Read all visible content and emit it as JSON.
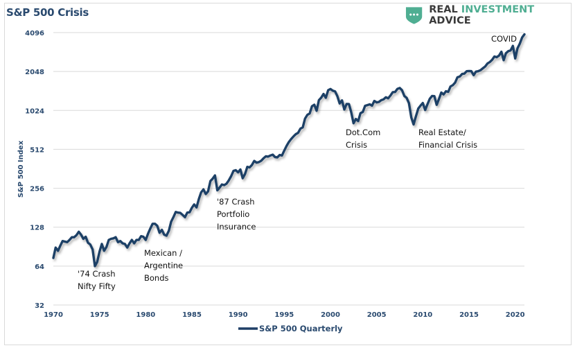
{
  "header": {
    "logo_word1": "REAL ",
    "logo_word2": "INVESTMENT",
    "logo_word3": " ADVICE",
    "logo_icon": "shield-dots-icon"
  },
  "colors": {
    "line": "#1f3f66",
    "title": "#2a4a6f",
    "logo_green": "#4fae92",
    "grid": "#d9d9d9"
  },
  "chart_data": {
    "type": "line",
    "title": "S&P 500 Crisis",
    "xlabel": "",
    "ylabel": "S&P 500 Index",
    "y_scale": "log2",
    "ylim": [
      32,
      4096
    ],
    "xlim": [
      1970,
      2021
    ],
    "grid": true,
    "legend_position": "bottom",
    "x_ticks": [
      "1970",
      "1975",
      "1980",
      "1985",
      "1990",
      "1995",
      "2000",
      "2005",
      "2010",
      "2015",
      "2020"
    ],
    "y_ticks": [
      "32",
      "64",
      "128",
      "256",
      "512",
      "1024",
      "2048",
      "4096"
    ],
    "series": [
      {
        "name": "S&P 500 Quarterly",
        "x": [
          1970.0,
          1970.25,
          1970.5,
          1970.75,
          1971.0,
          1971.25,
          1971.5,
          1971.75,
          1972.0,
          1972.25,
          1972.5,
          1972.75,
          1973.0,
          1973.25,
          1973.5,
          1973.75,
          1974.0,
          1974.25,
          1974.5,
          1974.75,
          1975.0,
          1975.25,
          1975.5,
          1975.75,
          1976.0,
          1976.25,
          1976.5,
          1976.75,
          1977.0,
          1977.25,
          1977.5,
          1977.75,
          1978.0,
          1978.25,
          1978.5,
          1978.75,
          1979.0,
          1979.25,
          1979.5,
          1979.75,
          1980.0,
          1980.25,
          1980.5,
          1980.75,
          1981.0,
          1981.25,
          1981.5,
          1981.75,
          1982.0,
          1982.25,
          1982.5,
          1982.75,
          1983.0,
          1983.25,
          1983.5,
          1983.75,
          1984.0,
          1984.25,
          1984.5,
          1984.75,
          1985.0,
          1985.25,
          1985.5,
          1985.75,
          1986.0,
          1986.25,
          1986.5,
          1986.75,
          1987.0,
          1987.25,
          1987.5,
          1987.75,
          1988.0,
          1988.25,
          1988.5,
          1988.75,
          1989.0,
          1989.25,
          1989.5,
          1989.75,
          1990.0,
          1990.25,
          1990.5,
          1990.75,
          1991.0,
          1991.25,
          1991.5,
          1991.75,
          1992.0,
          1992.25,
          1992.5,
          1992.75,
          1993.0,
          1993.25,
          1993.5,
          1993.75,
          1994.0,
          1994.25,
          1994.5,
          1994.75,
          1995.0,
          1995.25,
          1995.5,
          1995.75,
          1996.0,
          1996.25,
          1996.5,
          1996.75,
          1997.0,
          1997.25,
          1997.5,
          1997.75,
          1998.0,
          1998.25,
          1998.5,
          1998.75,
          1999.0,
          1999.25,
          1999.5,
          1999.75,
          2000.0,
          2000.25,
          2000.5,
          2000.75,
          2001.0,
          2001.25,
          2001.5,
          2001.75,
          2002.0,
          2002.25,
          2002.5,
          2002.75,
          2003.0,
          2003.25,
          2003.5,
          2003.75,
          2004.0,
          2004.25,
          2004.5,
          2004.75,
          2005.0,
          2005.25,
          2005.5,
          2005.75,
          2006.0,
          2006.25,
          2006.5,
          2006.75,
          2007.0,
          2007.25,
          2007.5,
          2007.75,
          2008.0,
          2008.25,
          2008.5,
          2008.75,
          2009.0,
          2009.25,
          2009.5,
          2009.75,
          2010.0,
          2010.25,
          2010.5,
          2010.75,
          2011.0,
          2011.25,
          2011.5,
          2011.75,
          2012.0,
          2012.25,
          2012.5,
          2012.75,
          2013.0,
          2013.25,
          2013.5,
          2013.75,
          2014.0,
          2014.25,
          2014.5,
          2014.75,
          2015.0,
          2015.25,
          2015.5,
          2015.75,
          2016.0,
          2016.25,
          2016.5,
          2016.75,
          2017.0,
          2017.25,
          2017.5,
          2017.75,
          2018.0,
          2018.25,
          2018.5,
          2018.75,
          2019.0,
          2019.25,
          2019.5,
          2019.75,
          2020.0,
          2020.25,
          2020.5,
          2020.75,
          2021.0
        ],
        "values": [
          74,
          89,
          84,
          92,
          100,
          99,
          98,
          102,
          107,
          107,
          111,
          118,
          112,
          104,
          108,
          97,
          94,
          86,
          64,
          69,
          83,
          95,
          84,
          90,
          102,
          104,
          105,
          107,
          98,
          100,
          96,
          95,
          89,
          96,
          102,
          96,
          102,
          102,
          109,
          108,
          102,
          114,
          125,
          136,
          136,
          131,
          116,
          122,
          112,
          110,
          120,
          141,
          153,
          168,
          166,
          165,
          159,
          153,
          166,
          167,
          181,
          192,
          182,
          211,
          238,
          251,
          231,
          242,
          291,
          304,
          322,
          247,
          259,
          274,
          271,
          278,
          295,
          318,
          349,
          353,
          340,
          358,
          306,
          330,
          375,
          371,
          388,
          417,
          404,
          408,
          418,
          436,
          452,
          450,
          459,
          466,
          446,
          444,
          463,
          459,
          501,
          545,
          584,
          616,
          645,
          671,
          687,
          741,
          757,
          885,
          947,
          970,
          1102,
          1134,
          1017,
          1229,
          1286,
          1373,
          1283,
          1469,
          1499,
          1455,
          1436,
          1320,
          1160,
          1224,
          1041,
          1148,
          1147,
          990,
          815,
          880,
          848,
          975,
          996,
          1112,
          1126,
          1141,
          1115,
          1212,
          1181,
          1191,
          1229,
          1248,
          1295,
          1270,
          1336,
          1418,
          1421,
          1503,
          1527,
          1469,
          1323,
          1280,
          1166,
          903,
          798,
          919,
          1057,
          1115,
          1169,
          1031,
          1141,
          1258,
          1326,
          1321,
          1131,
          1258,
          1408,
          1362,
          1441,
          1426,
          1569,
          1606,
          1682,
          1848,
          1872,
          1960,
          1972,
          2059,
          2068,
          2063,
          1920,
          2044,
          2060,
          2099,
          2168,
          2239,
          2363,
          2423,
          2519,
          2674,
          2641,
          2718,
          2914,
          2507,
          2834,
          2942,
          2977,
          3231,
          2585,
          3100,
          3363,
          3756,
          3973
        ]
      }
    ],
    "annotations": [
      {
        "text_lines": [
          "'74 Crash",
          "Nifty Fifty"
        ],
        "near_x": 1974.5
      },
      {
        "text_lines": [
          "Mexican /",
          "Argentine",
          "Bonds"
        ],
        "near_x": 1982
      },
      {
        "text_lines": [
          "'87 Crash",
          "Portfolio",
          "Insurance"
        ],
        "near_x": 1987.75
      },
      {
        "text_lines": [
          "Dot.Com",
          "Crisis"
        ],
        "near_x": 2002.5
      },
      {
        "text_lines": [
          "Real Estate/",
          "Financial Crisis"
        ],
        "near_x": 2009
      },
      {
        "text_lines": [
          "COVID"
        ],
        "near_x": 2020.25
      }
    ]
  }
}
